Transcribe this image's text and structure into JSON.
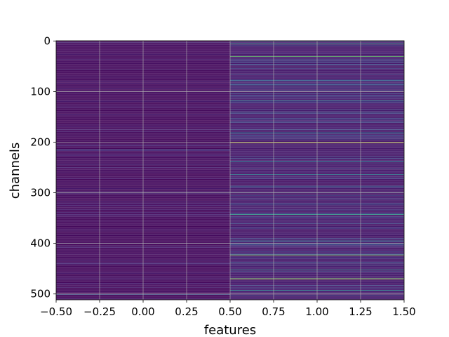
{
  "chart_data": {
    "type": "heatmap",
    "title": "",
    "xlabel": "features",
    "ylabel": "channels",
    "xlim": [
      -0.5,
      1.5
    ],
    "ylim": [
      511.5,
      -0.5
    ],
    "y_inverted": true,
    "grid": true,
    "colormap": "viridis",
    "rows": 512,
    "columns": [
      0,
      1
    ],
    "x_ticks": [
      "−0.50",
      "−0.25",
      "0.00",
      "0.25",
      "0.50",
      "0.75",
      "1.00",
      "1.25",
      "1.50"
    ],
    "x_tick_values": [
      -0.5,
      -0.25,
      0.0,
      0.25,
      0.5,
      0.75,
      1.0,
      1.25,
      1.5
    ],
    "y_ticks": [
      "0",
      "100",
      "200",
      "300",
      "400",
      "500"
    ],
    "y_tick_values": [
      0,
      100,
      200,
      300,
      400,
      500
    ],
    "column_base_values": [
      0.02,
      0.06
    ],
    "highlight_rows": [
      {
        "channel": 6,
        "column": 1,
        "value": 0.55
      },
      {
        "channel": 31,
        "column": 1,
        "value": 0.75
      },
      {
        "channel": 78,
        "column": 1,
        "value": 0.4
      },
      {
        "channel": 118,
        "column": 1,
        "value": 0.45
      },
      {
        "channel": 141,
        "column": 1,
        "value": 0.4
      },
      {
        "channel": 182,
        "column": 1,
        "value": 0.45
      },
      {
        "channel": 201,
        "column": 1,
        "value": 0.95
      },
      {
        "channel": 215,
        "column": 0,
        "value": 0.35
      },
      {
        "channel": 239,
        "column": 1,
        "value": 0.45
      },
      {
        "channel": 264,
        "column": 1,
        "value": 0.45
      },
      {
        "channel": 287,
        "column": 1,
        "value": 0.4
      },
      {
        "channel": 343,
        "column": 1,
        "value": 0.55
      },
      {
        "channel": 395,
        "column": 1,
        "value": 0.45
      },
      {
        "channel": 423,
        "column": 1,
        "value": 0.8
      },
      {
        "channel": 452,
        "column": 1,
        "value": 0.45
      },
      {
        "channel": 470,
        "column": 1,
        "value": 0.9
      },
      {
        "channel": 493,
        "column": 1,
        "value": 0.5
      },
      {
        "channel": 501,
        "column": 0,
        "value": 0.35
      }
    ],
    "colors": {
      "low": "#440154",
      "mid": "#21918c",
      "high": "#fde725",
      "grid": "#b0b0b0"
    }
  }
}
